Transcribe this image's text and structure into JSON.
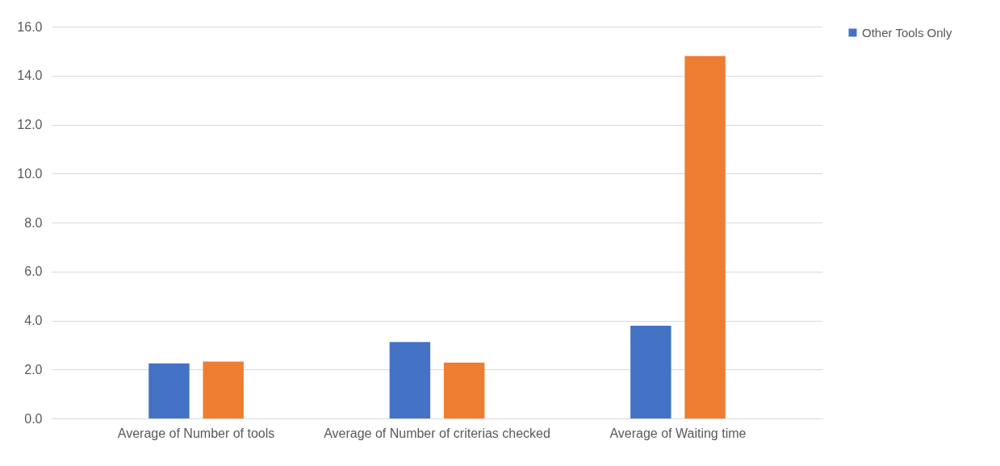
{
  "chart_data": {
    "type": "bar",
    "categories": [
      "Average of Number of tools",
      "Average of Number of criterias checked",
      "Average of Waiting time"
    ],
    "series": [
      {
        "name": "Other Tools Only",
        "color": "#4472c4",
        "values": [
          2.25,
          3.12,
          3.79
        ]
      },
      {
        "color": "#ed7d31",
        "values": [
          2.32,
          2.28,
          14.8
        ]
      }
    ],
    "ylim": [
      0,
      16
    ],
    "yticks": [
      {
        "value": 0,
        "label": "0.0"
      },
      {
        "value": 2,
        "label": "2.0"
      },
      {
        "value": 4,
        "label": "4.0"
      },
      {
        "value": 6,
        "label": "6.0"
      },
      {
        "value": 8,
        "label": "8.0"
      },
      {
        "value": 10,
        "label": "10.0"
      },
      {
        "value": 12,
        "label": "12.0"
      },
      {
        "value": 14,
        "label": "14.0"
      },
      {
        "value": 16,
        "label": "16.0"
      }
    ],
    "grid": "y",
    "legend": "right"
  }
}
